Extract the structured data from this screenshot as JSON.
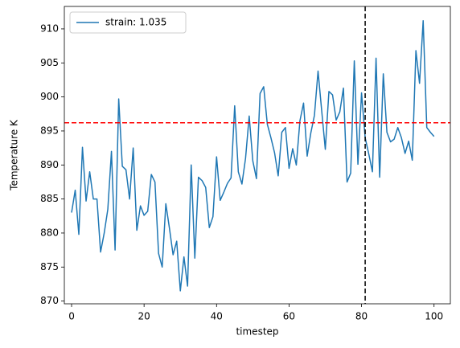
{
  "chart_data": {
    "type": "line",
    "xlabel": "timestep",
    "ylabel": "Temperature K",
    "x": [
      0,
      1,
      2,
      3,
      4,
      5,
      6,
      7,
      8,
      9,
      10,
      11,
      12,
      13,
      14,
      15,
      16,
      17,
      18,
      19,
      20,
      21,
      22,
      23,
      24,
      25,
      26,
      27,
      28,
      29,
      30,
      31,
      32,
      33,
      34,
      35,
      36,
      37,
      38,
      39,
      40,
      41,
      42,
      43,
      44,
      45,
      46,
      47,
      48,
      49,
      50,
      51,
      52,
      53,
      54,
      55,
      56,
      57,
      58,
      59,
      60,
      61,
      62,
      63,
      64,
      65,
      66,
      67,
      68,
      69,
      70,
      71,
      72,
      73,
      74,
      75,
      76,
      77,
      78,
      79,
      80,
      81,
      82,
      83,
      84,
      85,
      86,
      87,
      88,
      89,
      90,
      91,
      92,
      93,
      94,
      95,
      96,
      97,
      98,
      99,
      100
    ],
    "series": [
      {
        "name": "strain: 1.035",
        "color": "#1f77b4",
        "values": [
          883,
          886.3,
          879.8,
          892.6,
          884.7,
          889,
          885,
          885,
          877.2,
          880,
          883.5,
          892,
          877.5,
          899.7,
          889.8,
          889.3,
          885,
          892.5,
          880.4,
          884,
          882.6,
          883.2,
          888.6,
          887.5,
          877,
          875,
          884.3,
          880.7,
          876.8,
          878.8,
          871.5,
          876.5,
          872.2,
          890,
          876.3,
          888.2,
          887.7,
          886.7,
          880.8,
          882.4,
          891.2,
          884.8,
          886,
          887.3,
          888.1,
          898.7,
          889,
          887.2,
          891,
          897.2,
          890.6,
          888,
          900.5,
          901.5,
          896,
          894,
          891.8,
          888.4,
          894.8,
          895.5,
          889.5,
          892.4,
          890,
          896.5,
          899.1,
          891.3,
          894.7,
          897.3,
          903.8,
          898,
          892.3,
          900.8,
          900.3,
          896.6,
          897.8,
          901.3,
          887.5,
          888.8,
          905.3,
          890.1,
          900.6,
          894,
          891.6,
          889,
          905.7,
          888.2,
          903.4,
          894.8,
          893.4,
          893.8,
          895.5,
          894,
          891.7,
          893.5,
          890.7,
          906.8,
          902,
          911.2,
          895.5,
          894.8,
          894.2
        ]
      }
    ],
    "hline": {
      "value": 896.2,
      "color": "#ff0000"
    },
    "vline": {
      "value": 81,
      "color": "#000000"
    },
    "xlim": [
      -2,
      104.5
    ],
    "xticks": [
      0,
      20,
      40,
      60,
      80,
      100
    ],
    "ylim": [
      869.6,
      913.3
    ],
    "yticks": [
      870,
      875,
      880,
      885,
      890,
      895,
      900,
      905,
      910
    ],
    "grid": false,
    "legend": "upper left"
  }
}
